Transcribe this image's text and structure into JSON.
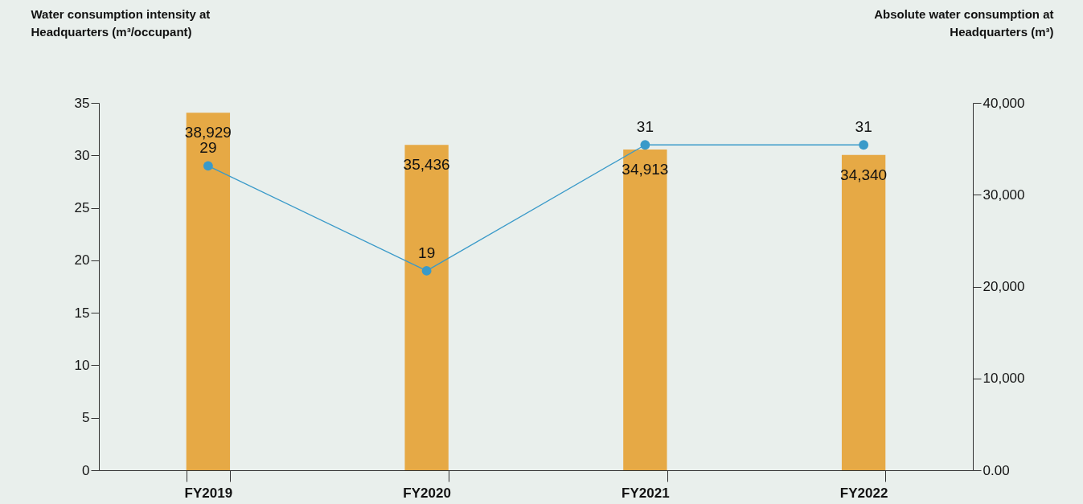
{
  "chart_data": {
    "type": "bar",
    "categories": [
      "FY2019",
      "FY2020",
      "FY2021",
      "FY2022"
    ],
    "series": [
      {
        "axis": "y2",
        "color": "#e6a945",
        "values": [
          38929,
          35436,
          34913,
          34340
        ],
        "value_labels": [
          "38,929",
          "35,436",
          "34,913",
          "34,340"
        ]
      },
      {
        "type": "line",
        "color": "#3a9ac9",
        "values": [
          29,
          19,
          31,
          31
        ]
      }
    ],
    "ylabel": "Water consumption intensity at Headquarters (m³/occupant)",
    "y2label": "Absolute water consumption at Headquarters (m³)",
    "ylim": [
      0,
      35
    ],
    "yticks": [
      0,
      5,
      10,
      15,
      20,
      25,
      30,
      35
    ],
    "y2lim": [
      0,
      40000
    ],
    "y2ticks": [
      {
        "value": 0,
        "label": "0.00"
      },
      {
        "value": 10000,
        "label": "10,000"
      },
      {
        "value": 20000,
        "label": "20,000"
      },
      {
        "value": 30000,
        "label": "30,000"
      },
      {
        "value": 40000,
        "label": "40,000"
      }
    ],
    "marker": "circle",
    "data_labels": true
  }
}
